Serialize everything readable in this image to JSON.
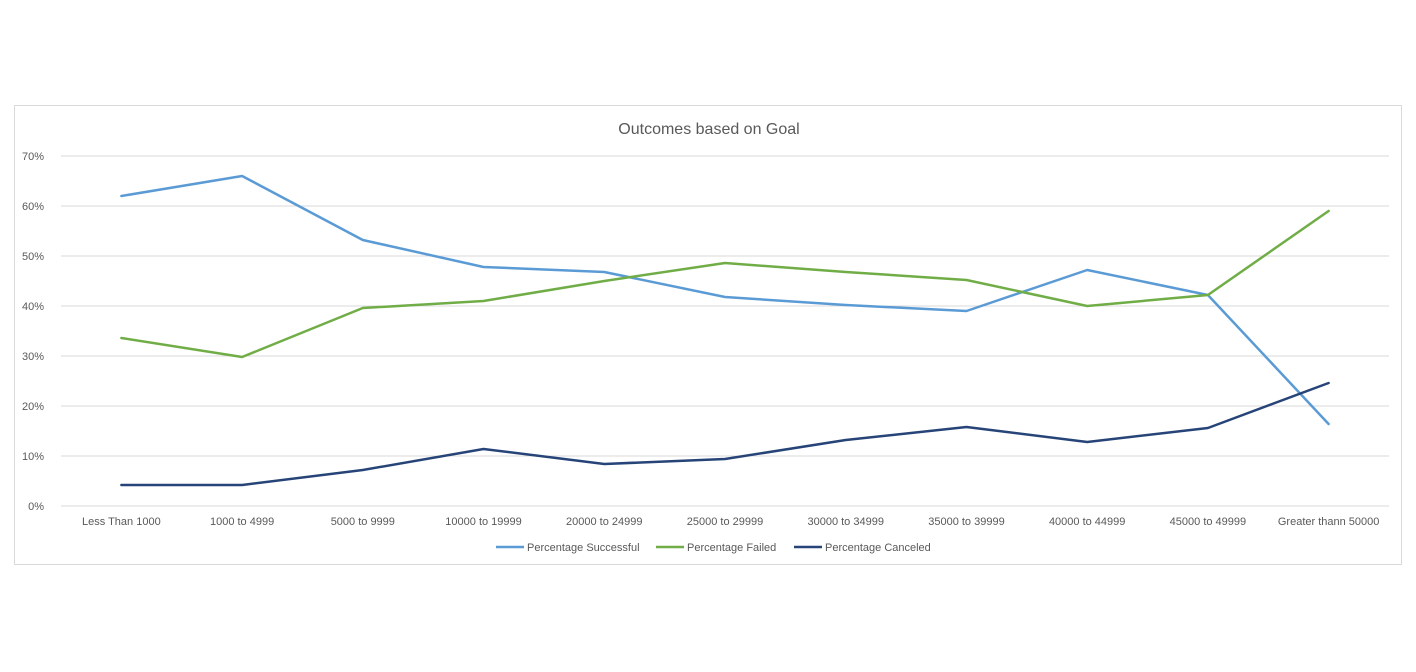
{
  "chart_data": {
    "type": "line",
    "title": "Outcomes based on Goal",
    "xlabel": "",
    "ylabel": "",
    "categories": [
      "Less Than 1000",
      "1000 to 4999",
      "5000 to 9999",
      "10000 to 19999",
      "20000 to 24999",
      "25000 to 29999",
      "30000 to 34999",
      "35000 to 39999",
      "40000 to 44999",
      "45000 to 49999",
      "Greater thann 50000"
    ],
    "yticks": [
      "0%",
      "10%",
      "20%",
      "30%",
      "40%",
      "50%",
      "60%",
      "70%"
    ],
    "ylim": [
      0,
      70
    ],
    "grid": true,
    "legend_position": "bottom",
    "series": [
      {
        "name": "Percentage Successful",
        "color": "#5b9bd5",
        "values": [
          62,
          66,
          53.2,
          47.8,
          46.8,
          41.8,
          40.2,
          39,
          47.2,
          42.2,
          16.4
        ]
      },
      {
        "name": "Percentage Failed",
        "color": "#70ad47",
        "values": [
          33.6,
          29.8,
          39.6,
          41,
          45,
          48.6,
          46.8,
          45.2,
          40,
          42.2,
          59
        ]
      },
      {
        "name": "Percentage Canceled",
        "color": "#264478",
        "values": [
          4.2,
          4.2,
          7.2,
          11.4,
          8.4,
          9.4,
          13.2,
          15.8,
          12.8,
          15.6,
          24.6
        ]
      }
    ]
  }
}
